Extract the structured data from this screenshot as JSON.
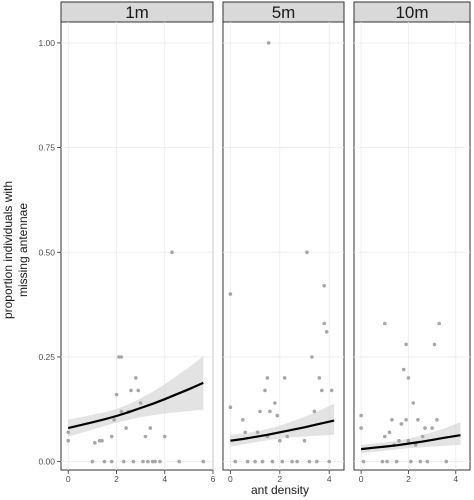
{
  "chart_data": {
    "type": "scatter",
    "xlabel": "ant density",
    "ylabel_lines": [
      "proportion individuals with",
      "missing antennae"
    ],
    "ylim": [
      0,
      1
    ],
    "y_ticks": [
      0,
      0.25,
      0.5,
      0.75,
      1
    ],
    "y_tick_labels": [
      "0.00",
      "0.25",
      "0.50",
      "0.75",
      "1.00"
    ],
    "grid": true,
    "colors": {
      "points": "#a6a6a6",
      "line": "#000000",
      "ribbon": "#cccccc",
      "strip": "#d9d9d9"
    },
    "panels": [
      {
        "label": "1m",
        "xlim": [
          -0.3,
          6.0
        ],
        "x_ticks": [
          0,
          2,
          4,
          6
        ],
        "x_tick_labels": [
          "0",
          "2",
          "4",
          "6"
        ],
        "points": [
          {
            "x": 0.0,
            "y": 0.05
          },
          {
            "x": 0.0,
            "y": 0.07
          },
          {
            "x": 1.1,
            "y": 0.045
          },
          {
            "x": 1.3,
            "y": 0.05
          },
          {
            "x": 1.4,
            "y": 0.05
          },
          {
            "x": 1.0,
            "y": 0.0
          },
          {
            "x": 1.5,
            "y": 0.0
          },
          {
            "x": 1.8,
            "y": 0.0
          },
          {
            "x": 1.8,
            "y": 0.06
          },
          {
            "x": 1.9,
            "y": 0.1
          },
          {
            "x": 2.0,
            "y": 0.16
          },
          {
            "x": 2.1,
            "y": 0.25
          },
          {
            "x": 2.2,
            "y": 0.25
          },
          {
            "x": 2.2,
            "y": 0.12
          },
          {
            "x": 2.3,
            "y": 0.0
          },
          {
            "x": 2.4,
            "y": 0.08
          },
          {
            "x": 2.5,
            "y": 0.12
          },
          {
            "x": 2.6,
            "y": 0.17
          },
          {
            "x": 2.7,
            "y": 0.0
          },
          {
            "x": 2.8,
            "y": 0.2
          },
          {
            "x": 2.9,
            "y": 0.17
          },
          {
            "x": 3.0,
            "y": 0.14
          },
          {
            "x": 3.1,
            "y": 0.0
          },
          {
            "x": 3.2,
            "y": 0.06
          },
          {
            "x": 3.3,
            "y": 0.0
          },
          {
            "x": 3.4,
            "y": 0.08
          },
          {
            "x": 3.5,
            "y": 0.0
          },
          {
            "x": 3.6,
            "y": 0.0
          },
          {
            "x": 3.8,
            "y": 0.0
          },
          {
            "x": 4.0,
            "y": 0.06
          },
          {
            "x": 4.3,
            "y": 0.5
          },
          {
            "x": 4.6,
            "y": 0.0
          },
          {
            "x": 5.6,
            "y": 0.0
          }
        ],
        "fit": {
          "x": [
            0,
            0.5,
            1,
            1.5,
            2,
            2.5,
            3,
            3.5,
            4,
            4.5,
            5,
            5.6
          ],
          "y": [
            0.08,
            0.087,
            0.094,
            0.101,
            0.109,
            0.118,
            0.128,
            0.138,
            0.149,
            0.161,
            0.173,
            0.188
          ],
          "lower": [
            0.06,
            0.068,
            0.076,
            0.085,
            0.093,
            0.1,
            0.106,
            0.111,
            0.115,
            0.118,
            0.121,
            0.124
          ],
          "upper": [
            0.1,
            0.106,
            0.112,
            0.118,
            0.126,
            0.137,
            0.151,
            0.167,
            0.185,
            0.205,
            0.225,
            0.252
          ]
        }
      },
      {
        "label": "5m",
        "xlim": [
          -0.3,
          4.6
        ],
        "x_ticks": [
          0,
          2,
          4
        ],
        "x_tick_labels": [
          "0",
          "2",
          "4"
        ],
        "points": [
          {
            "x": 0.0,
            "y": 0.4
          },
          {
            "x": 0.0,
            "y": 0.13
          },
          {
            "x": 0.2,
            "y": 0.0
          },
          {
            "x": 0.5,
            "y": 0.1
          },
          {
            "x": 0.6,
            "y": 0.07
          },
          {
            "x": 0.7,
            "y": 0.0
          },
          {
            "x": 1.0,
            "y": 0.0
          },
          {
            "x": 1.1,
            "y": 0.07
          },
          {
            "x": 1.2,
            "y": 0.12
          },
          {
            "x": 1.3,
            "y": 0.0
          },
          {
            "x": 1.4,
            "y": 0.17
          },
          {
            "x": 1.5,
            "y": 0.2
          },
          {
            "x": 1.5,
            "y": 0.06
          },
          {
            "x": 1.55,
            "y": 1.0
          },
          {
            "x": 1.6,
            "y": 0.12
          },
          {
            "x": 1.7,
            "y": 0.0
          },
          {
            "x": 1.8,
            "y": 0.14
          },
          {
            "x": 1.9,
            "y": 0.11
          },
          {
            "x": 2.0,
            "y": 0.05
          },
          {
            "x": 2.1,
            "y": 0.0
          },
          {
            "x": 2.2,
            "y": 0.2
          },
          {
            "x": 2.3,
            "y": 0.06
          },
          {
            "x": 2.5,
            "y": 0.0
          },
          {
            "x": 2.7,
            "y": 0.0
          },
          {
            "x": 3.0,
            "y": 0.05
          },
          {
            "x": 3.1,
            "y": 0.5
          },
          {
            "x": 3.2,
            "y": 0.0
          },
          {
            "x": 3.3,
            "y": 0.25
          },
          {
            "x": 3.4,
            "y": 0.12
          },
          {
            "x": 3.5,
            "y": 0.0
          },
          {
            "x": 3.6,
            "y": 0.2
          },
          {
            "x": 3.7,
            "y": 0.17
          },
          {
            "x": 3.8,
            "y": 0.33
          },
          {
            "x": 3.8,
            "y": 0.42
          },
          {
            "x": 3.9,
            "y": 0.31
          },
          {
            "x": 4.0,
            "y": 0.0
          },
          {
            "x": 4.1,
            "y": 0.17
          }
        ],
        "fit": {
          "x": [
            0,
            0.5,
            1,
            1.5,
            2,
            2.5,
            3,
            3.5,
            4.2
          ],
          "y": [
            0.05,
            0.054,
            0.059,
            0.064,
            0.07,
            0.076,
            0.082,
            0.089,
            0.098
          ],
          "lower": [
            0.036,
            0.041,
            0.046,
            0.051,
            0.055,
            0.058,
            0.06,
            0.062,
            0.064
          ],
          "upper": [
            0.064,
            0.067,
            0.072,
            0.078,
            0.086,
            0.096,
            0.107,
            0.119,
            0.138
          ]
        }
      },
      {
        "label": "10m",
        "xlim": [
          -0.3,
          4.6
        ],
        "x_ticks": [
          0,
          2,
          4
        ],
        "x_tick_labels": [
          "0",
          "2",
          "4"
        ],
        "points": [
          {
            "x": 0.0,
            "y": 0.11
          },
          {
            "x": 0.0,
            "y": 0.08
          },
          {
            "x": 0.1,
            "y": 0.0
          },
          {
            "x": 0.9,
            "y": 0.0
          },
          {
            "x": 1.0,
            "y": 0.33
          },
          {
            "x": 1.0,
            "y": 0.06
          },
          {
            "x": 1.1,
            "y": 0.0
          },
          {
            "x": 1.2,
            "y": 0.07
          },
          {
            "x": 1.3,
            "y": 0.1
          },
          {
            "x": 1.4,
            "y": 0.04
          },
          {
            "x": 1.5,
            "y": 0.0
          },
          {
            "x": 1.6,
            "y": 0.05
          },
          {
            "x": 1.7,
            "y": 0.09
          },
          {
            "x": 1.8,
            "y": 0.22
          },
          {
            "x": 1.9,
            "y": 0.28
          },
          {
            "x": 1.9,
            "y": 0.1
          },
          {
            "x": 2.0,
            "y": 0.05
          },
          {
            "x": 2.0,
            "y": 0.2
          },
          {
            "x": 2.1,
            "y": 0.0
          },
          {
            "x": 2.2,
            "y": 0.14
          },
          {
            "x": 2.3,
            "y": 0.04
          },
          {
            "x": 2.4,
            "y": 0.1
          },
          {
            "x": 2.5,
            "y": 0.0
          },
          {
            "x": 2.6,
            "y": 0.06
          },
          {
            "x": 2.7,
            "y": 0.08
          },
          {
            "x": 2.8,
            "y": 0.0
          },
          {
            "x": 3.0,
            "y": 0.08
          },
          {
            "x": 3.1,
            "y": 0.28
          },
          {
            "x": 3.2,
            "y": 0.1
          },
          {
            "x": 3.3,
            "y": 0.33
          },
          {
            "x": 3.6,
            "y": 0.0
          }
        ],
        "fit": {
          "x": [
            0,
            0.5,
            1,
            1.5,
            2,
            2.5,
            3,
            3.5,
            4.2
          ],
          "y": [
            0.03,
            0.033,
            0.036,
            0.039,
            0.043,
            0.047,
            0.052,
            0.057,
            0.063
          ],
          "lower": [
            0.02,
            0.023,
            0.026,
            0.029,
            0.032,
            0.034,
            0.036,
            0.038,
            0.04
          ],
          "upper": [
            0.04,
            0.043,
            0.046,
            0.05,
            0.055,
            0.062,
            0.07,
            0.079,
            0.094
          ]
        }
      }
    ]
  }
}
